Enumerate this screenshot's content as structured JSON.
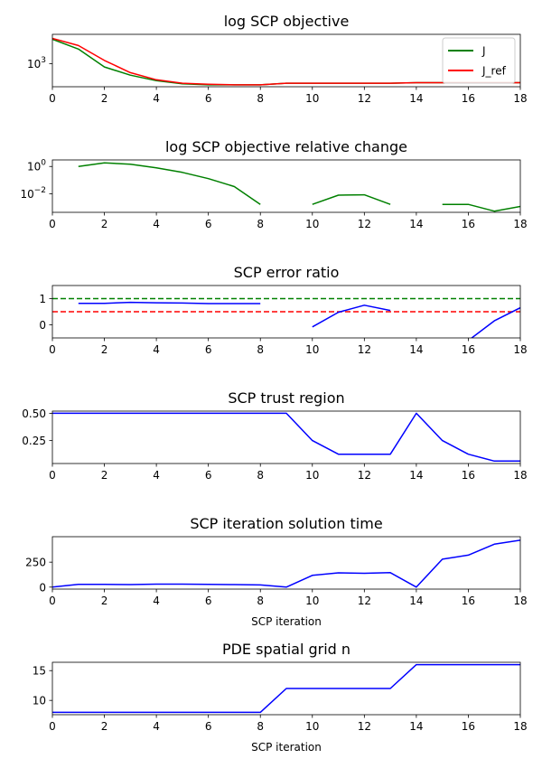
{
  "chart_data": [
    {
      "type": "line",
      "title": "log SCP objective",
      "xlabel": "",
      "ylabel": "",
      "xlim": [
        0,
        18
      ],
      "yscale": "log",
      "ylim": [
        270,
        5300
      ],
      "xticks": [
        0,
        2,
        4,
        6,
        8,
        10,
        12,
        14,
        16,
        18
      ],
      "yticks": [
        {
          "value": 1000,
          "label": "10",
          "exp": "3"
        }
      ],
      "grid": false,
      "legend": {
        "placement": "top-right",
        "entries": [
          "J",
          "J_ref"
        ]
      },
      "series": [
        {
          "name": "J",
          "color": "#008000",
          "x": [
            0,
            1,
            2,
            3,
            4,
            5,
            6,
            7,
            8,
            9,
            10,
            11,
            12,
            13,
            14,
            15,
            16,
            17,
            18
          ],
          "y": [
            4000,
            2300,
            830,
            520,
            380,
            320,
            300,
            300,
            300,
            330,
            330,
            330,
            330,
            330,
            340,
            340,
            340,
            340,
            340
          ]
        },
        {
          "name": "J_ref",
          "color": "#ff0000",
          "x": [
            0,
            1,
            2,
            3,
            4,
            5,
            6,
            7,
            8,
            9,
            10,
            11,
            12,
            13,
            14,
            15,
            16,
            17,
            18
          ],
          "y": [
            4200,
            2800,
            1200,
            600,
            400,
            330,
            310,
            300,
            300,
            330,
            330,
            330,
            330,
            330,
            340,
            340,
            340,
            340,
            340
          ]
        }
      ]
    },
    {
      "type": "line",
      "title": "log SCP objective relative change",
      "xlabel": "",
      "ylabel": "",
      "xlim": [
        0,
        18
      ],
      "yscale": "log",
      "ylim": [
        0.00045,
        3
      ],
      "xticks": [
        0,
        2,
        4,
        6,
        8,
        10,
        12,
        14,
        16,
        18
      ],
      "yticks": [
        {
          "value": 1,
          "label": "10",
          "exp": "0"
        },
        {
          "value": 0.01,
          "label": "10",
          "exp": "−2"
        }
      ],
      "grid": false,
      "series": [
        {
          "color": "#008000",
          "x": [
            1,
            2,
            3,
            4,
            5,
            6,
            7,
            8,
            9,
            10,
            11,
            12,
            13,
            14,
            15,
            16,
            17,
            18
          ],
          "y": [
            1.0,
            1.85,
            1.45,
            0.8,
            0.37,
            0.13,
            0.034,
            0.0017,
            null,
            0.0017,
            0.008,
            0.0085,
            0.0017,
            null,
            0.0017,
            0.0017,
            0.00055,
            0.0012
          ]
        }
      ]
    },
    {
      "type": "line",
      "title": "SCP error ratio",
      "xlabel": "",
      "ylabel": "",
      "xlim": [
        0,
        18
      ],
      "ylim": [
        -0.5,
        1.5
      ],
      "xticks": [
        0,
        2,
        4,
        6,
        8,
        10,
        12,
        14,
        16,
        18
      ],
      "yticks": [
        {
          "value": 1,
          "label": "1"
        },
        {
          "value": 0,
          "label": "0"
        }
      ],
      "grid": false,
      "reference_lines": [
        {
          "y": 1.0,
          "color": "#008000",
          "style": "dashed"
        },
        {
          "y": 0.5,
          "color": "#ff0000",
          "style": "dashed"
        }
      ],
      "series": [
        {
          "color": "#0000ff",
          "x": [
            1,
            2,
            3,
            4,
            5,
            6,
            7,
            8,
            9,
            10,
            11,
            12,
            13,
            14,
            15,
            16,
            17,
            18
          ],
          "y": [
            0.82,
            0.82,
            0.86,
            0.84,
            0.83,
            0.81,
            0.81,
            0.81,
            null,
            -0.08,
            0.48,
            0.75,
            0.55,
            null,
            null,
            -0.6,
            0.15,
            0.65
          ]
        }
      ]
    },
    {
      "type": "line",
      "title": "SCP trust region",
      "xlabel": "",
      "ylabel": "",
      "xlim": [
        0,
        18
      ],
      "ylim": [
        0.04,
        0.52
      ],
      "xticks": [
        0,
        2,
        4,
        6,
        8,
        10,
        12,
        14,
        16,
        18
      ],
      "yticks": [
        {
          "value": 0.5,
          "label": "0.50"
        },
        {
          "value": 0.25,
          "label": "0.25"
        }
      ],
      "grid": false,
      "series": [
        {
          "color": "#0000ff",
          "x": [
            0,
            1,
            2,
            3,
            4,
            5,
            6,
            7,
            8,
            9,
            10,
            11,
            12,
            13,
            14,
            15,
            16,
            17,
            18
          ],
          "y": [
            0.5,
            0.5,
            0.5,
            0.5,
            0.5,
            0.5,
            0.5,
            0.5,
            0.5,
            0.5,
            0.25,
            0.125,
            0.125,
            0.125,
            0.5,
            0.25,
            0.125,
            0.0625,
            0.0625
          ]
        }
      ]
    },
    {
      "type": "line",
      "title": "SCP iteration solution time",
      "xlabel": "SCP iteration",
      "ylabel": "",
      "xlim": [
        0,
        18
      ],
      "ylim": [
        -20,
        505
      ],
      "xticks": [
        0,
        2,
        4,
        6,
        8,
        10,
        12,
        14,
        16,
        18
      ],
      "yticks": [
        {
          "value": 250,
          "label": "250"
        },
        {
          "value": 0,
          "label": "0"
        }
      ],
      "grid": false,
      "series": [
        {
          "color": "#0000ff",
          "x": [
            0,
            1,
            2,
            3,
            4,
            5,
            6,
            7,
            8,
            9,
            10,
            11,
            12,
            13,
            14,
            15,
            16,
            17,
            18
          ],
          "y": [
            0,
            28,
            28,
            25,
            30,
            30,
            28,
            25,
            22,
            0,
            118,
            143,
            138,
            145,
            0,
            280,
            320,
            430,
            470
          ]
        }
      ]
    },
    {
      "type": "line",
      "title": "PDE spatial grid n",
      "xlabel": "SCP iteration",
      "ylabel": "",
      "xlim": [
        0,
        18
      ],
      "ylim": [
        7.6,
        16.4
      ],
      "xticks": [
        0,
        2,
        4,
        6,
        8,
        10,
        12,
        14,
        16,
        18
      ],
      "yticks": [
        {
          "value": 15,
          "label": "15"
        },
        {
          "value": 10,
          "label": "10"
        }
      ],
      "grid": false,
      "series": [
        {
          "color": "#0000ff",
          "x": [
            0,
            1,
            2,
            3,
            4,
            5,
            6,
            7,
            8,
            9,
            10,
            11,
            12,
            13,
            14,
            15,
            16,
            17,
            18
          ],
          "y": [
            8,
            8,
            8,
            8,
            8,
            8,
            8,
            8,
            8,
            12,
            12,
            12,
            12,
            12,
            16,
            16,
            16,
            16,
            16
          ]
        }
      ]
    }
  ]
}
